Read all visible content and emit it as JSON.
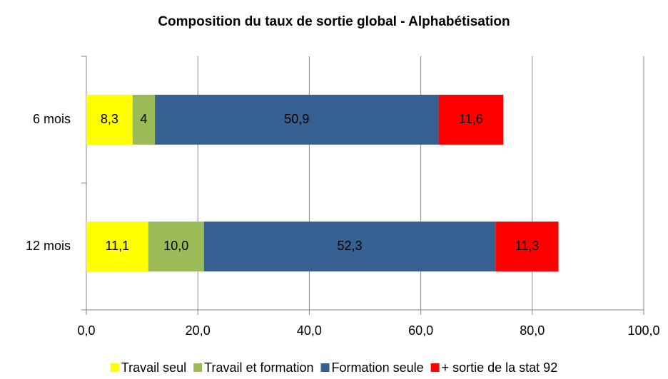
{
  "chart_data": {
    "type": "stacked_barh",
    "title": "Composition du taux de sortie global - Alphabétisation",
    "categories": [
      "6 mois",
      "12 mois"
    ],
    "series": [
      {
        "name": "Travail seul",
        "color": "#ffff00",
        "values": [
          8.3,
          11.1
        ],
        "value_labels": [
          "8,3",
          "11,1"
        ]
      },
      {
        "name": "Travail et formation",
        "color": "#9bbb59",
        "values": [
          4,
          10.0
        ],
        "value_labels": [
          "4",
          "10,0"
        ]
      },
      {
        "name": "Formation seule",
        "color": "#376092",
        "values": [
          50.9,
          52.3
        ],
        "value_labels": [
          "50,9",
          "52,3"
        ]
      },
      {
        "name": "+ sortie de la stat 92",
        "color": "#ff0000",
        "values": [
          11.6,
          11.3
        ],
        "value_labels": [
          "11,6",
          "11,3"
        ]
      }
    ],
    "xlim": [
      0,
      100
    ],
    "xticks": [
      {
        "value": 0,
        "label": "0,0"
      },
      {
        "value": 20,
        "label": "20,0"
      },
      {
        "value": 40,
        "label": "40,0"
      },
      {
        "value": 60,
        "label": "60,0"
      },
      {
        "value": 80,
        "label": "80,0"
      },
      {
        "value": 100,
        "label": "100,0"
      }
    ],
    "grid": true,
    "legend": "bottom"
  }
}
